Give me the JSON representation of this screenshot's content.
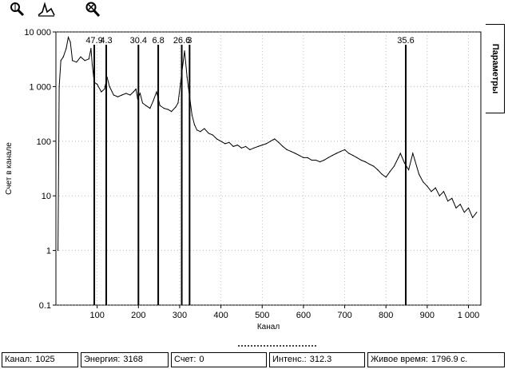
{
  "toolbar": {
    "tools": [
      {
        "name": "zoom-icon"
      },
      {
        "name": "peak-search-icon"
      },
      {
        "name": "zoom-reset-icon"
      }
    ]
  },
  "side_tab": {
    "label": "Параметры"
  },
  "status": {
    "channel_label": "Канал:",
    "channel_value": "1025",
    "energy_label": "Энергия:",
    "energy_value": "3168",
    "count_label": "Счет:",
    "count_value": "0",
    "intensity_label": "Интенс.:",
    "intensity_value": "312.3",
    "live_time_label": "Живое время:",
    "live_time_value": "1796.9 с."
  },
  "colors": {
    "line": "#000000",
    "grid": "#9a9a9a",
    "panel": "#ffffff"
  },
  "chart_data": {
    "type": "line",
    "title": "",
    "xlabel": "Канал",
    "ylabel": "Счет в канале",
    "xlim": [
      0,
      1030
    ],
    "ylim": [
      0.1,
      10000
    ],
    "yscale": "log",
    "grid": true,
    "x_ticks": [
      100,
      200,
      300,
      400,
      500,
      600,
      700,
      800,
      900,
      1000
    ],
    "x_tick_labels": [
      "100",
      "200",
      "300",
      "400",
      "500",
      "600",
      "700",
      "800",
      "900",
      "1 000"
    ],
    "y_ticks": [
      0.1,
      1,
      10,
      100,
      1000,
      10000
    ],
    "y_tick_labels": [
      "0.1",
      "1",
      "10",
      "100",
      "1 000",
      "10 000"
    ],
    "peak_markers": [
      {
        "x": 93,
        "label": "47.9"
      },
      {
        "x": 122,
        "label": "4.3"
      },
      {
        "x": 200,
        "label": "30.4"
      },
      {
        "x": 248,
        "label": "6.8"
      },
      {
        "x": 305,
        "label": "26.6"
      },
      {
        "x": 324,
        "label": "3"
      },
      {
        "x": 848,
        "label": "35.6"
      }
    ],
    "series": [
      {
        "values": [
          [
            5,
            1
          ],
          [
            8,
            1000
          ],
          [
            12,
            3000
          ],
          [
            18,
            3500
          ],
          [
            25,
            5000
          ],
          [
            30,
            8000
          ],
          [
            35,
            6500
          ],
          [
            40,
            3000
          ],
          [
            50,
            2800
          ],
          [
            60,
            3500
          ],
          [
            70,
            3000
          ],
          [
            80,
            3200
          ],
          [
            85,
            5000
          ],
          [
            88,
            2500
          ],
          [
            93,
            1200
          ],
          [
            100,
            1100
          ],
          [
            110,
            800
          ],
          [
            118,
            900
          ],
          [
            124,
            1500
          ],
          [
            130,
            1000
          ],
          [
            140,
            700
          ],
          [
            150,
            650
          ],
          [
            160,
            700
          ],
          [
            170,
            750
          ],
          [
            180,
            700
          ],
          [
            188,
            800
          ],
          [
            194,
            900
          ],
          [
            198,
            600
          ],
          [
            204,
            750
          ],
          [
            210,
            500
          ],
          [
            218,
            450
          ],
          [
            228,
            400
          ],
          [
            236,
            550
          ],
          [
            244,
            800
          ],
          [
            252,
            450
          ],
          [
            262,
            400
          ],
          [
            272,
            380
          ],
          [
            280,
            350
          ],
          [
            290,
            420
          ],
          [
            296,
            500
          ],
          [
            312,
            4500
          ],
          [
            318,
            1500
          ],
          [
            330,
            300
          ],
          [
            336,
            200
          ],
          [
            342,
            160
          ],
          [
            350,
            150
          ],
          [
            360,
            170
          ],
          [
            370,
            140
          ],
          [
            380,
            130
          ],
          [
            390,
            110
          ],
          [
            400,
            100
          ],
          [
            410,
            90
          ],
          [
            420,
            95
          ],
          [
            430,
            80
          ],
          [
            440,
            85
          ],
          [
            450,
            75
          ],
          [
            460,
            80
          ],
          [
            470,
            70
          ],
          [
            480,
            75
          ],
          [
            490,
            80
          ],
          [
            500,
            85
          ],
          [
            510,
            90
          ],
          [
            520,
            100
          ],
          [
            530,
            110
          ],
          [
            540,
            95
          ],
          [
            550,
            80
          ],
          [
            560,
            70
          ],
          [
            570,
            65
          ],
          [
            580,
            60
          ],
          [
            590,
            55
          ],
          [
            600,
            50
          ],
          [
            610,
            50
          ],
          [
            620,
            45
          ],
          [
            630,
            45
          ],
          [
            640,
            42
          ],
          [
            650,
            45
          ],
          [
            660,
            50
          ],
          [
            670,
            55
          ],
          [
            680,
            60
          ],
          [
            690,
            65
          ],
          [
            700,
            70
          ],
          [
            710,
            60
          ],
          [
            720,
            55
          ],
          [
            730,
            50
          ],
          [
            740,
            45
          ],
          [
            750,
            42
          ],
          [
            760,
            38
          ],
          [
            770,
            35
          ],
          [
            780,
            30
          ],
          [
            790,
            25
          ],
          [
            800,
            22
          ],
          [
            810,
            28
          ],
          [
            820,
            35
          ],
          [
            830,
            50
          ],
          [
            835,
            60
          ],
          [
            845,
            40
          ],
          [
            855,
            30
          ],
          [
            865,
            60
          ],
          [
            870,
            45
          ],
          [
            880,
            25
          ],
          [
            890,
            18
          ],
          [
            900,
            15
          ],
          [
            910,
            12
          ],
          [
            920,
            14
          ],
          [
            930,
            10
          ],
          [
            940,
            12
          ],
          [
            950,
            8
          ],
          [
            960,
            9
          ],
          [
            970,
            6
          ],
          [
            980,
            7
          ],
          [
            990,
            5
          ],
          [
            1000,
            6
          ],
          [
            1010,
            4
          ],
          [
            1020,
            5
          ]
        ]
      }
    ]
  }
}
